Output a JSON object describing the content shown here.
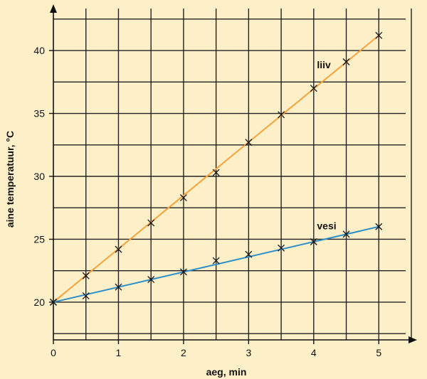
{
  "colors": {
    "background": "#fdf0c8",
    "grid": "#222222",
    "axis": "#111111"
  },
  "chart_data": {
    "type": "line",
    "xlabel": "aeg, min",
    "ylabel": "aine temperatuur, °C",
    "xlim": [
      0,
      5.5
    ],
    "ylim": [
      17,
      43
    ],
    "x_ticks": [
      0,
      1,
      2,
      3,
      4,
      5
    ],
    "y_ticks": [
      20,
      25,
      30,
      35,
      40
    ],
    "grid": true,
    "marker": "x",
    "series": [
      {
        "name": "liiv",
        "color": "#f5a23a",
        "line": {
          "from": [
            0,
            20
          ],
          "to": [
            5,
            41.2
          ]
        },
        "points": [
          [
            0,
            20
          ],
          [
            0.5,
            22.1
          ],
          [
            1,
            24.2
          ],
          [
            1.5,
            26.3
          ],
          [
            2,
            28.3
          ],
          [
            2.5,
            30.3
          ],
          [
            3,
            32.7
          ],
          [
            3.5,
            34.9
          ],
          [
            4,
            37.0
          ],
          [
            4.5,
            39.1
          ],
          [
            5,
            41.2
          ]
        ]
      },
      {
        "name": "vesi",
        "color": "#2a8fc8",
        "line": {
          "from": [
            0,
            20
          ],
          "to": [
            5,
            26.0
          ]
        },
        "points": [
          [
            0,
            20
          ],
          [
            0.5,
            20.5
          ],
          [
            1,
            21.2
          ],
          [
            1.5,
            21.8
          ],
          [
            2,
            22.4
          ],
          [
            2.5,
            23.3
          ],
          [
            3,
            23.8
          ],
          [
            3.5,
            24.3
          ],
          [
            4,
            24.8
          ],
          [
            4.5,
            25.4
          ],
          [
            5,
            26.0
          ]
        ]
      }
    ]
  }
}
